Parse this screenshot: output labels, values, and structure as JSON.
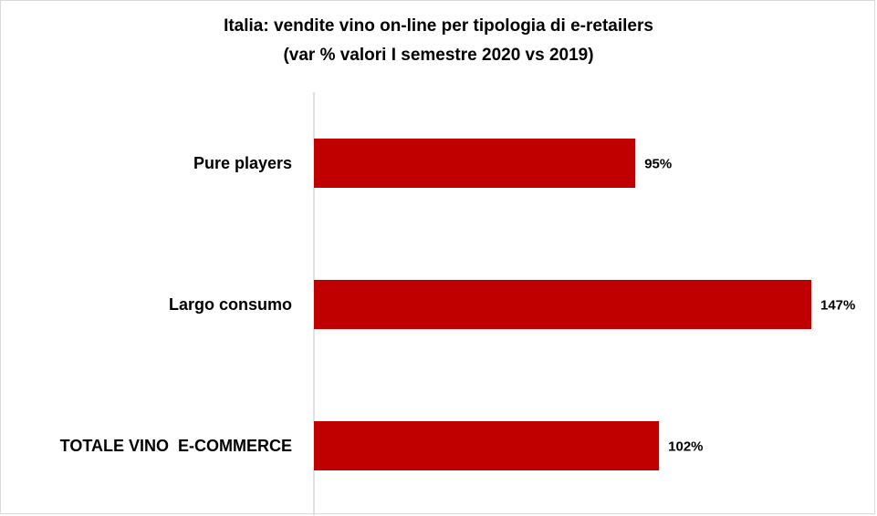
{
  "chart_data": {
    "type": "bar",
    "orientation": "horizontal",
    "title": "Italia: vendite vino on-line per tipologia di e-retailers",
    "subtitle": "(var % valori I semestre 2020 vs 2019)",
    "categories": [
      "Pure players",
      "Largo consumo",
      "TOTALE VINO  E-COMMERCE"
    ],
    "values": [
      95,
      147,
      102
    ],
    "value_labels": [
      "95%",
      "147%",
      "102%"
    ],
    "xlim": [
      0,
      147
    ],
    "grid": false,
    "legend": "none",
    "bar_color": "#c00000",
    "axis_color": "#d9d9d9"
  }
}
